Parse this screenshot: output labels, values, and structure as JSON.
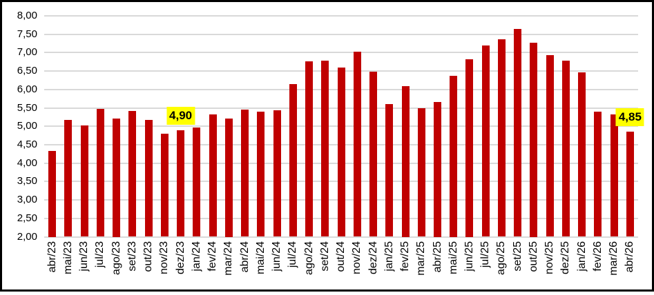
{
  "chart_data": {
    "type": "bar",
    "title": "",
    "xlabel": "",
    "ylabel": "",
    "legend": "none",
    "grid": "horizontal",
    "ylim": [
      2.0,
      8.0
    ],
    "bar_color": "#c00000",
    "gridline_color": "#d9d9d9",
    "frame_border_color": "#000000",
    "background_color": "#ffffff",
    "x_label_rotation": 90,
    "categories": [
      "abr/23",
      "mai/23",
      "jun/23",
      "jul/23",
      "ago/23",
      "set/23",
      "out/23",
      "nov/23",
      "dez/23",
      "jan/24",
      "fev/24",
      "mar/24",
      "abr/24",
      "mai/24",
      "jun/24",
      "jul/24",
      "ago/24",
      "set/24",
      "out/24",
      "nov/24",
      "dez/24",
      "jan/25",
      "fev/25",
      "mar/25",
      "abr/25",
      "mai/25",
      "jun/25",
      "jul/25",
      "ago/25",
      "set/25",
      "out/25",
      "nov/25",
      "dez/25",
      "jan/26",
      "fev/26",
      "mar/26",
      "abr/26"
    ],
    "values": [
      4.34,
      5.18,
      5.02,
      5.48,
      5.22,
      5.42,
      5.17,
      4.8,
      4.9,
      4.97,
      5.33,
      5.22,
      5.45,
      5.4,
      5.44,
      6.15,
      6.76,
      6.78,
      6.6,
      7.02,
      6.48,
      5.61,
      6.1,
      5.49,
      5.67,
      6.38,
      6.83,
      7.2,
      7.36,
      7.65,
      7.27,
      6.93,
      6.79,
      6.46,
      5.4,
      5.33,
      4.85
    ],
    "yticks": [
      {
        "value": 2.0,
        "label": "2,00"
      },
      {
        "value": 2.5,
        "label": "2,50"
      },
      {
        "value": 3.0,
        "label": "3,00"
      },
      {
        "value": 3.5,
        "label": "3,50"
      },
      {
        "value": 4.0,
        "label": "4,00"
      },
      {
        "value": 4.5,
        "label": "4,50"
      },
      {
        "value": 5.0,
        "label": "5,00"
      },
      {
        "value": 5.5,
        "label": "5,50"
      },
      {
        "value": 6.0,
        "label": "6,00"
      },
      {
        "value": 6.5,
        "label": "6,50"
      },
      {
        "value": 7.0,
        "label": "7,00"
      },
      {
        "value": 7.5,
        "label": "7,50"
      },
      {
        "value": 8.0,
        "label": "8,00"
      }
    ],
    "annotations": [
      {
        "text": "4,90",
        "category": "dez/23",
        "highlight_color": "#ffff00"
      },
      {
        "text": "4,85",
        "category": "abr/26",
        "highlight_color": "#ffff00"
      }
    ]
  }
}
